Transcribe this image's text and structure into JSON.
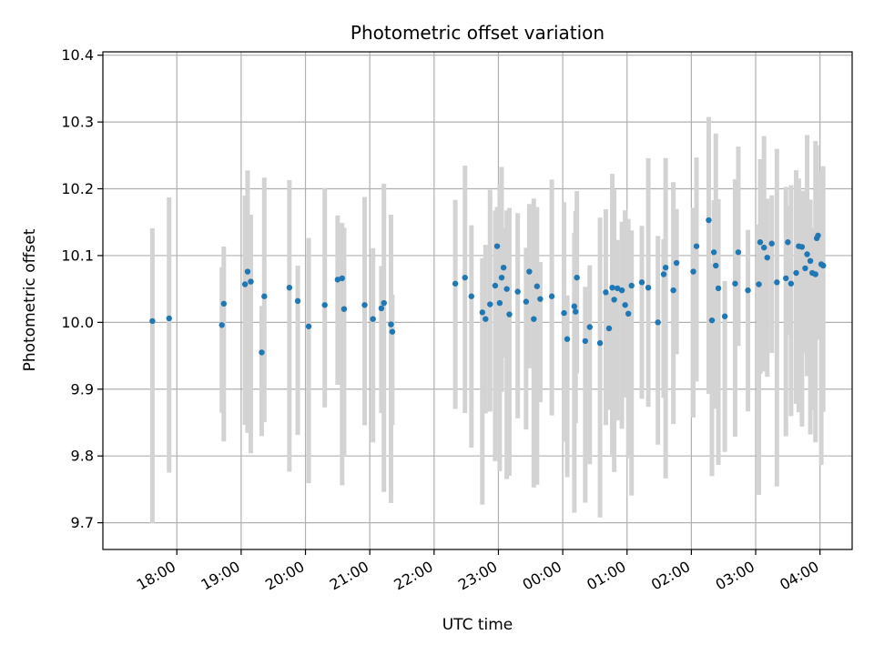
{
  "chart_data": {
    "type": "scatter",
    "title": "Photometric offset variation",
    "xlabel": "UTC time",
    "ylabel": "Photometric offset",
    "x_tick_labels": [
      "18:00",
      "19:00",
      "20:00",
      "21:00",
      "22:00",
      "23:00",
      "00:00",
      "01:00",
      "02:00",
      "03:00",
      "04:00"
    ],
    "y_tick_labels": [
      "9.7",
      "9.8",
      "9.9",
      "10.0",
      "10.1",
      "10.2",
      "10.3",
      "10.4"
    ],
    "y_ticks": [
      9.7,
      9.8,
      9.9,
      10.0,
      10.1,
      10.2,
      10.3,
      10.4
    ],
    "xlim_hours": [
      16.85,
      28.5
    ],
    "ylim": [
      9.66,
      10.405
    ],
    "grid": true,
    "colors": {
      "point": "#1f77b4",
      "errorbar": "#d3d3d3",
      "grid": "#b0b0b0"
    },
    "series": [
      {
        "values_hours": [
          17.62,
          17.88,
          18.7,
          18.73,
          19.06,
          19.1,
          19.15,
          19.32,
          19.36,
          19.75,
          19.88,
          20.05,
          20.3,
          20.5,
          20.57,
          20.6,
          20.92,
          21.05,
          21.18,
          21.22,
          21.33,
          21.35,
          22.33,
          22.48,
          22.58,
          22.75,
          22.8,
          22.87,
          22.95,
          22.98,
          23.02,
          23.05,
          23.08,
          23.13,
          23.17,
          23.3,
          23.43,
          23.48,
          23.55,
          23.6,
          23.65,
          23.83,
          24.02,
          24.07,
          24.18,
          24.2,
          24.22,
          24.35,
          24.42,
          24.58,
          24.67,
          24.72,
          24.77,
          24.8,
          24.85,
          24.92,
          24.97,
          25.02,
          25.07,
          25.23,
          25.33,
          25.48,
          25.57,
          25.6,
          25.72,
          25.77,
          26.03,
          26.08,
          26.27,
          26.32,
          26.35,
          26.38,
          26.42,
          26.52,
          26.68,
          26.73,
          26.88,
          27.05,
          27.07,
          27.13,
          27.18,
          27.25,
          27.33,
          27.47,
          27.5,
          27.55,
          27.63,
          27.67,
          27.72,
          27.77,
          27.8,
          27.85,
          27.88,
          27.93,
          27.95,
          27.97,
          28.02,
          28.05
        ],
        "values": [
          10.002,
          10.006,
          9.996,
          10.028,
          10.057,
          10.076,
          10.061,
          9.955,
          10.039,
          10.052,
          10.032,
          9.994,
          10.026,
          10.064,
          10.066,
          10.02,
          10.026,
          10.005,
          10.021,
          10.029,
          9.997,
          9.986,
          10.058,
          10.067,
          10.039,
          10.015,
          10.005,
          10.027,
          10.055,
          10.114,
          10.029,
          10.067,
          10.082,
          10.05,
          10.012,
          10.046,
          10.031,
          10.076,
          10.005,
          10.054,
          10.035,
          10.039,
          10.014,
          9.975,
          10.024,
          10.016,
          10.067,
          9.972,
          9.993,
          9.969,
          10.045,
          9.991,
          10.052,
          10.034,
          10.051,
          10.048,
          10.026,
          10.013,
          10.055,
          10.06,
          10.052,
          10.0,
          10.072,
          10.082,
          10.048,
          10.089,
          10.076,
          10.114,
          10.153,
          10.003,
          10.105,
          10.085,
          10.051,
          10.009,
          10.058,
          10.105,
          10.048,
          10.057,
          10.12,
          10.112,
          10.097,
          10.118,
          10.06,
          10.066,
          10.12,
          10.058,
          10.074,
          10.114,
          10.113,
          10.081,
          10.102,
          10.092,
          10.074,
          10.072,
          10.126,
          10.13,
          10.087,
          10.085
        ]
      }
    ]
  }
}
